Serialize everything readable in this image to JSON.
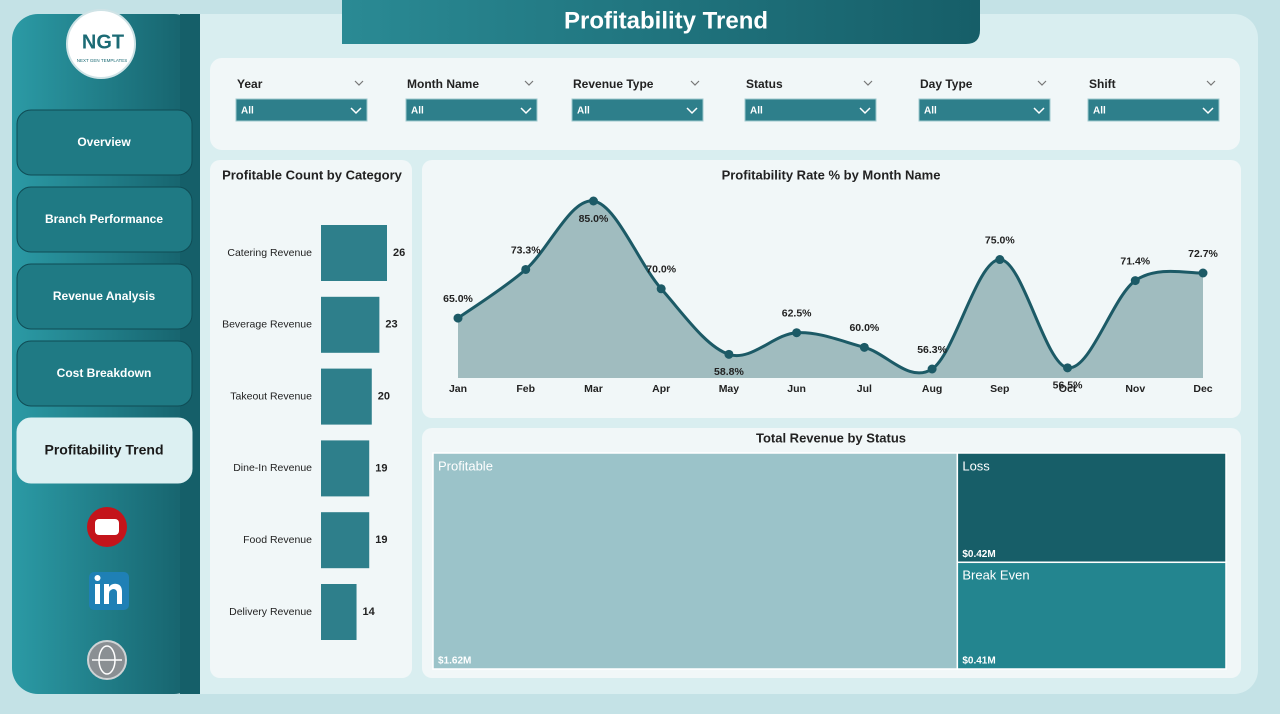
{
  "header": {
    "title": "Profitability Trend"
  },
  "logo": {
    "text": "NGT",
    "subtitle": "NEXT GEN TEMPLATES"
  },
  "nav": [
    "Overview",
    "Branch Performance",
    "Revenue Analysis",
    "Cost Breakdown",
    "Profitability Trend"
  ],
  "filters": [
    {
      "label": "Year",
      "value": "All"
    },
    {
      "label": "Month Name",
      "value": "All"
    },
    {
      "label": "Revenue Type",
      "value": "All"
    },
    {
      "label": "Status",
      "value": "All"
    },
    {
      "label": "Day Type",
      "value": "All"
    },
    {
      "label": "Shift",
      "value": "All"
    }
  ],
  "chart_data": [
    {
      "type": "bar",
      "title": "Profitable Count by Category",
      "categories": [
        "Catering Revenue",
        "Beverage Revenue",
        "Takeout Revenue",
        "Dine-In Revenue",
        "Food Revenue",
        "Delivery Revenue"
      ],
      "values": [
        26,
        23,
        20,
        19,
        19,
        14
      ],
      "color": "#2e7f8b"
    },
    {
      "type": "line",
      "title": "Profitability Rate % by Month Name",
      "categories": [
        "Jan",
        "Feb",
        "Mar",
        "Apr",
        "May",
        "Jun",
        "Jul",
        "Aug",
        "Sep",
        "Oct",
        "Nov",
        "Dec"
      ],
      "values": [
        65.0,
        73.3,
        85.0,
        70.0,
        58.8,
        62.5,
        60.0,
        56.3,
        75.0,
        56.5,
        71.4,
        72.7
      ],
      "value_labels": [
        "65.0%",
        "73.3%",
        "85.0%",
        "70.0%",
        "58.8%",
        "62.5%",
        "60.0%",
        "56.3%",
        "75.0%",
        "56.5%",
        "71.4%",
        "72.7%"
      ],
      "color": "#1c5a66",
      "area_color": "#9bb8bc"
    },
    {
      "type": "treemap",
      "title": "Total Revenue by Status",
      "categories": [
        "Profitable",
        "Loss",
        "Break Even"
      ],
      "values": [
        1620000,
        420000,
        410000
      ],
      "value_labels": [
        "$1.62M",
        "$0.42M",
        "$0.41M"
      ],
      "colors": [
        "#9bc3c9",
        "#175e68",
        "#23858f"
      ]
    }
  ]
}
